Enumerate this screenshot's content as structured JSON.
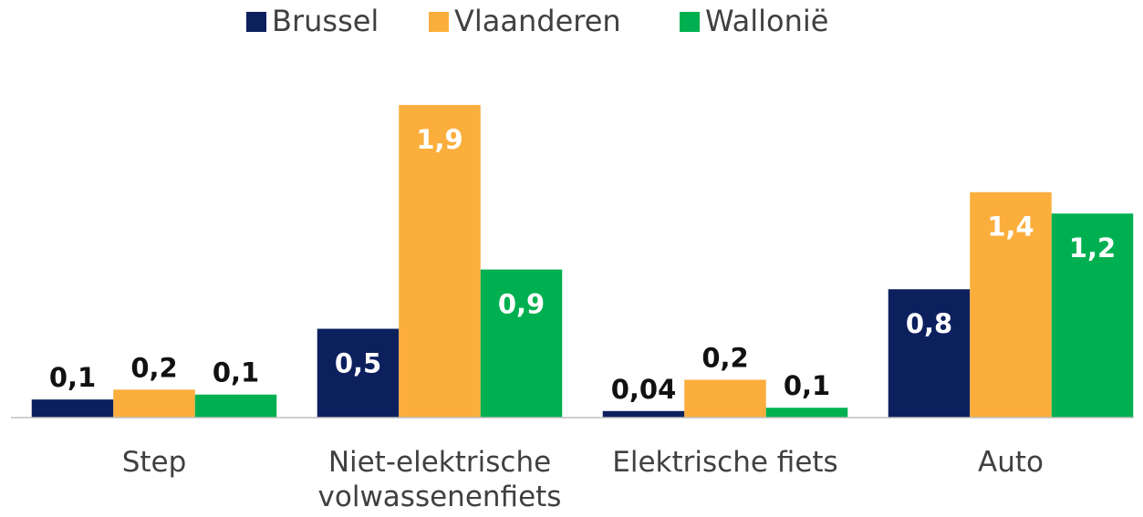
{
  "chart_data": {
    "type": "bar",
    "categories": [
      "Step",
      "Niet-elektrische volwassenenfiets",
      "Elektrische fiets",
      "Auto"
    ],
    "series": [
      {
        "name": "Brussel",
        "color": "#0d205e",
        "values": [
          0.11,
          0.54,
          0.04,
          0.78
        ],
        "value_labels": [
          "0,1",
          "0,5",
          "0,04",
          "0,8"
        ]
      },
      {
        "name": "Vlaanderen",
        "color": "#fbae3c",
        "values": [
          0.17,
          1.9,
          0.23,
          1.37
        ],
        "value_labels": [
          "0,2",
          "1,9",
          "0,2",
          "1,4"
        ]
      },
      {
        "name": "Wallonië",
        "color": "#00b050",
        "values": [
          0.14,
          0.9,
          0.06,
          1.24
        ],
        "value_labels": [
          "0,1",
          "0,9",
          "0,1",
          "1,2"
        ]
      }
    ],
    "ylim": [
      0,
      2.1
    ],
    "legend": "top"
  }
}
